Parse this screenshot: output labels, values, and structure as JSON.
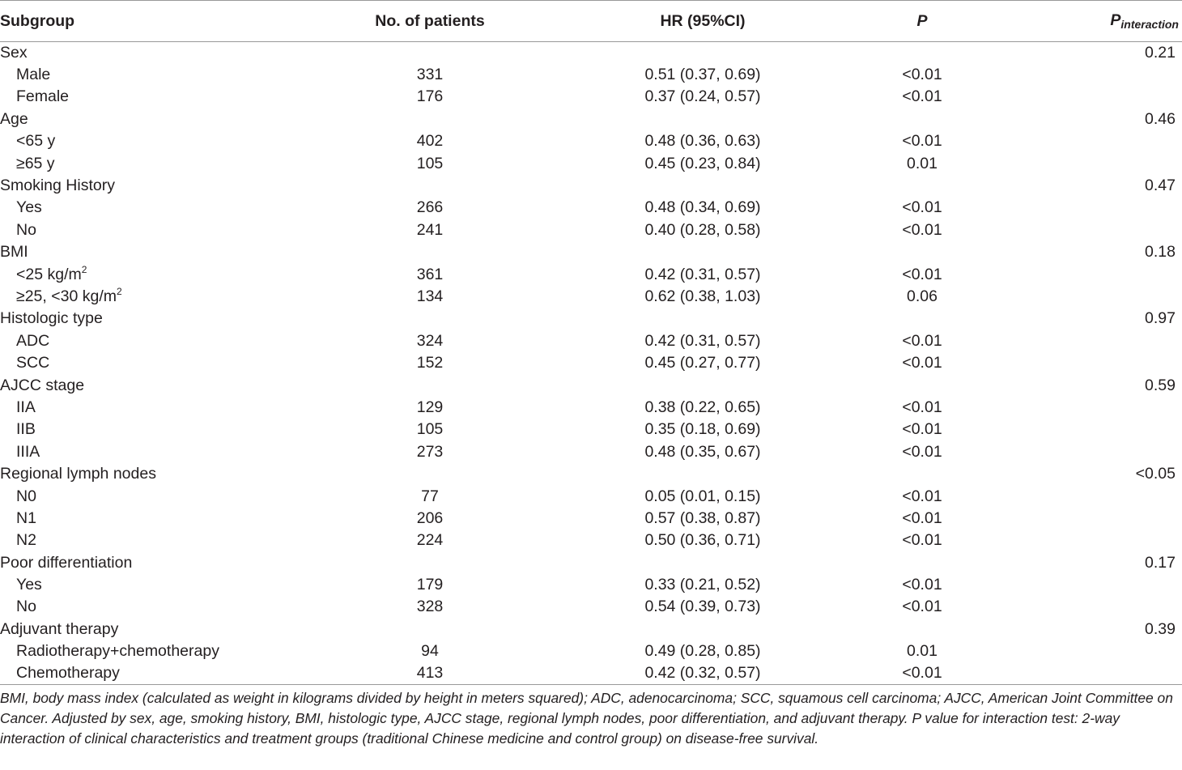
{
  "header": {
    "subgroup": "Subgroup",
    "patients": "No. of patients",
    "hr": "HR (95%CI)",
    "p": "P",
    "p_interaction_main": "P",
    "p_interaction_sub": "interaction"
  },
  "rows": [
    {
      "label": "Sex",
      "sup": "",
      "n": "",
      "hr": "",
      "p": "",
      "pi": "0.21",
      "indent": false
    },
    {
      "label": "Male",
      "sup": "",
      "n": "331",
      "hr": "0.51 (0.37, 0.69)",
      "p": "<0.01",
      "pi": "",
      "indent": true
    },
    {
      "label": "Female",
      "sup": "",
      "n": "176",
      "hr": "0.37 (0.24, 0.57)",
      "p": "<0.01",
      "pi": "",
      "indent": true
    },
    {
      "label": "Age",
      "sup": "",
      "n": "",
      "hr": "",
      "p": "",
      "pi": "0.46",
      "indent": false
    },
    {
      "label": "<65 y",
      "sup": "",
      "n": "402",
      "hr": "0.48 (0.36, 0.63)",
      "p": "<0.01",
      "pi": "",
      "indent": true
    },
    {
      "label": "≥65 y",
      "sup": "",
      "n": "105",
      "hr": "0.45 (0.23, 0.84)",
      "p": "0.01",
      "pi": "",
      "indent": true
    },
    {
      "label": "Smoking History",
      "sup": "",
      "n": "",
      "hr": "",
      "p": "",
      "pi": "0.47",
      "indent": false
    },
    {
      "label": "Yes",
      "sup": "",
      "n": "266",
      "hr": "0.48 (0.34, 0.69)",
      "p": "<0.01",
      "pi": "",
      "indent": true
    },
    {
      "label": "No",
      "sup": "",
      "n": "241",
      "hr": "0.40 (0.28, 0.58)",
      "p": "<0.01",
      "pi": "",
      "indent": true
    },
    {
      "label": "BMI",
      "sup": "",
      "n": "",
      "hr": "",
      "p": "",
      "pi": "0.18",
      "indent": false
    },
    {
      "label": "<25 kg/m",
      "sup": "2",
      "n": "361",
      "hr": "0.42 (0.31, 0.57)",
      "p": "<0.01",
      "pi": "",
      "indent": true
    },
    {
      "label": "≥25, <30 kg/m",
      "sup": "2",
      "n": "134",
      "hr": "0.62 (0.38, 1.03)",
      "p": "0.06",
      "pi": "",
      "indent": true
    },
    {
      "label": "Histologic type",
      "sup": "",
      "n": "",
      "hr": "",
      "p": "",
      "pi": "0.97",
      "indent": false
    },
    {
      "label": "ADC",
      "sup": "",
      "n": "324",
      "hr": "0.42 (0.31, 0.57)",
      "p": "<0.01",
      "pi": "",
      "indent": true
    },
    {
      "label": "SCC",
      "sup": "",
      "n": "152",
      "hr": "0.45 (0.27, 0.77)",
      "p": "<0.01",
      "pi": "",
      "indent": true
    },
    {
      "label": "AJCC stage",
      "sup": "",
      "n": "",
      "hr": "",
      "p": "",
      "pi": "0.59",
      "indent": false
    },
    {
      "label": "IIA",
      "sup": "",
      "n": "129",
      "hr": "0.38 (0.22, 0.65)",
      "p": "<0.01",
      "pi": "",
      "indent": true
    },
    {
      "label": "IIB",
      "sup": "",
      "n": "105",
      "hr": "0.35 (0.18, 0.69)",
      "p": "<0.01",
      "pi": "",
      "indent": true
    },
    {
      "label": "IIIA",
      "sup": "",
      "n": "273",
      "hr": "0.48 (0.35, 0.67)",
      "p": "<0.01",
      "pi": "",
      "indent": true
    },
    {
      "label": "Regional lymph nodes",
      "sup": "",
      "n": "",
      "hr": "",
      "p": "",
      "pi": "<0.05",
      "indent": false
    },
    {
      "label": "N0",
      "sup": "",
      "n": "77",
      "hr": "0.05 (0.01, 0.15)",
      "p": "<0.01",
      "pi": "",
      "indent": true
    },
    {
      "label": "N1",
      "sup": "",
      "n": "206",
      "hr": "0.57 (0.38, 0.87)",
      "p": "<0.01",
      "pi": "",
      "indent": true
    },
    {
      "label": "N2",
      "sup": "",
      "n": "224",
      "hr": "0.50 (0.36, 0.71)",
      "p": "<0.01",
      "pi": "",
      "indent": true
    },
    {
      "label": "Poor differentiation",
      "sup": "",
      "n": "",
      "hr": "",
      "p": "",
      "pi": "0.17",
      "indent": false
    },
    {
      "label": "Yes",
      "sup": "",
      "n": "179",
      "hr": "0.33 (0.21, 0.52)",
      "p": "<0.01",
      "pi": "",
      "indent": true
    },
    {
      "label": "No",
      "sup": "",
      "n": "328",
      "hr": "0.54 (0.39, 0.73)",
      "p": "<0.01",
      "pi": "",
      "indent": true
    },
    {
      "label": "Adjuvant therapy",
      "sup": "",
      "n": "",
      "hr": "",
      "p": "",
      "pi": "0.39",
      "indent": false
    },
    {
      "label": "Radiotherapy+chemotherapy",
      "sup": "",
      "n": "94",
      "hr": "0.49 (0.28, 0.85)",
      "p": "0.01",
      "pi": "",
      "indent": true
    },
    {
      "label": "Chemotherapy",
      "sup": "",
      "n": "413",
      "hr": "0.42 (0.32, 0.57)",
      "p": "<0.01",
      "pi": "",
      "indent": true
    }
  ],
  "footnote": "BMI, body mass index (calculated as weight in kilograms divided by height in meters squared); ADC, adenocarcinoma; SCC, squamous cell carcinoma; AJCC, American Joint Committee on Cancer. Adjusted by sex, age, smoking history, BMI, histologic type, AJCC stage, regional lymph nodes, poor differentiation, and adjuvant therapy. P value for interaction test: 2-way interaction of clinical characteristics and treatment groups (traditional Chinese medicine and control group) on disease-free survival."
}
